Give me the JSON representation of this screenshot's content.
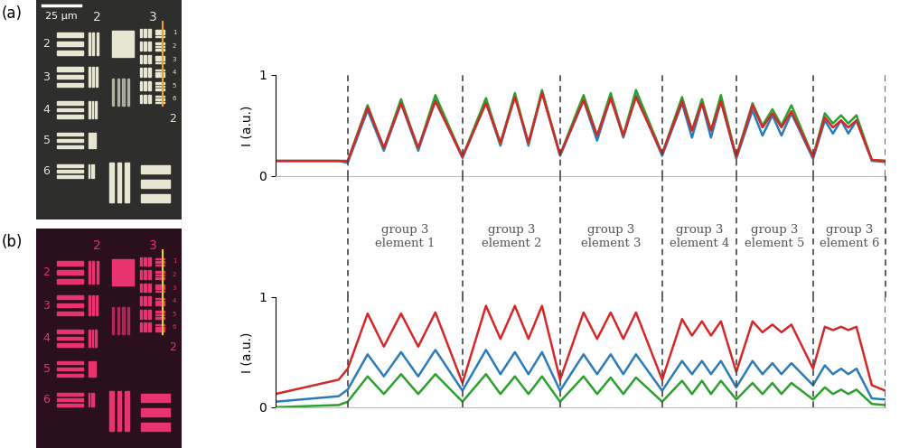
{
  "chart_data": [
    {
      "type": "line",
      "ylabel": "I (a.u.)",
      "xlim": [
        0,
        675
      ],
      "ylim": [
        0,
        1
      ],
      "yticks": [
        0,
        1
      ],
      "tick_labels": "y",
      "line_style": "solid",
      "x": [
        0,
        70,
        80,
        102,
        120,
        139,
        158,
        177,
        207,
        233,
        249,
        265,
        280,
        295,
        315,
        341,
        356,
        371,
        385,
        399,
        428,
        450,
        461,
        472,
        482,
        493,
        510,
        528,
        539,
        550,
        560,
        571,
        595,
        608,
        617,
        626,
        634,
        643,
        660,
        675
      ],
      "vlines": [
        80,
        207,
        315,
        428,
        510,
        595,
        675
      ],
      "annotations": [
        "group 3\nelement 1",
        "group 3\nelement 2",
        "group 3\nelement 3",
        "group 3\nelement 4",
        "group 3\nelement 5",
        "group 3\nelement 6"
      ],
      "series": [
        {
          "color": "#2b7bba",
          "values": [
            0.15,
            0.15,
            0.13,
            0.65,
            0.25,
            0.72,
            0.25,
            0.75,
            0.18,
            0.73,
            0.3,
            0.8,
            0.3,
            0.83,
            0.2,
            0.75,
            0.35,
            0.78,
            0.38,
            0.8,
            0.2,
            0.72,
            0.38,
            0.72,
            0.38,
            0.74,
            0.17,
            0.65,
            0.4,
            0.6,
            0.4,
            0.62,
            0.17,
            0.55,
            0.42,
            0.55,
            0.42,
            0.55,
            0.15,
            0.14
          ]
        },
        {
          "color": "#2ca02c",
          "values": [
            0.15,
            0.15,
            0.15,
            0.7,
            0.27,
            0.76,
            0.27,
            0.8,
            0.19,
            0.77,
            0.32,
            0.82,
            0.32,
            0.85,
            0.21,
            0.8,
            0.4,
            0.82,
            0.4,
            0.85,
            0.22,
            0.78,
            0.45,
            0.76,
            0.45,
            0.8,
            0.19,
            0.72,
            0.5,
            0.66,
            0.5,
            0.7,
            0.19,
            0.62,
            0.52,
            0.6,
            0.52,
            0.6,
            0.16,
            0.15
          ]
        },
        {
          "color": "#d62728",
          "values": [
            0.15,
            0.15,
            0.15,
            0.68,
            0.28,
            0.72,
            0.28,
            0.74,
            0.19,
            0.72,
            0.33,
            0.78,
            0.33,
            0.82,
            0.21,
            0.75,
            0.4,
            0.77,
            0.4,
            0.78,
            0.22,
            0.74,
            0.45,
            0.72,
            0.45,
            0.74,
            0.19,
            0.7,
            0.48,
            0.62,
            0.48,
            0.64,
            0.19,
            0.58,
            0.48,
            0.55,
            0.48,
            0.55,
            0.16,
            0.15
          ]
        }
      ]
    },
    {
      "type": "line",
      "ylabel": "I (a.u.)",
      "xlim": [
        0,
        675
      ],
      "ylim": [
        0,
        1
      ],
      "yticks": [
        0,
        1
      ],
      "tick_labels": "y",
      "line_style": "solid",
      "x": [
        0,
        70,
        80,
        102,
        120,
        139,
        158,
        177,
        207,
        233,
        249,
        265,
        280,
        295,
        315,
        341,
        356,
        371,
        385,
        399,
        428,
        450,
        461,
        472,
        482,
        493,
        510,
        528,
        539,
        550,
        560,
        571,
        595,
        608,
        617,
        626,
        634,
        643,
        660,
        675
      ],
      "vlines": [
        80,
        207,
        315,
        428,
        510,
        595,
        675
      ],
      "series": [
        {
          "color": "#2b7bba",
          "values": [
            0.05,
            0.1,
            0.16,
            0.48,
            0.28,
            0.5,
            0.28,
            0.52,
            0.15,
            0.52,
            0.3,
            0.5,
            0.3,
            0.5,
            0.15,
            0.48,
            0.3,
            0.48,
            0.3,
            0.48,
            0.15,
            0.42,
            0.3,
            0.42,
            0.3,
            0.42,
            0.18,
            0.42,
            0.3,
            0.4,
            0.3,
            0.4,
            0.2,
            0.38,
            0.3,
            0.35,
            0.3,
            0.35,
            0.08,
            0.07
          ]
        },
        {
          "color": "#2ca02c",
          "values": [
            0.0,
            0.02,
            0.05,
            0.28,
            0.12,
            0.3,
            0.12,
            0.3,
            0.05,
            0.3,
            0.12,
            0.28,
            0.12,
            0.28,
            0.05,
            0.28,
            0.12,
            0.27,
            0.12,
            0.27,
            0.05,
            0.24,
            0.12,
            0.24,
            0.12,
            0.24,
            0.07,
            0.22,
            0.12,
            0.22,
            0.12,
            0.22,
            0.07,
            0.18,
            0.12,
            0.16,
            0.12,
            0.16,
            0.03,
            0.02
          ]
        },
        {
          "color": "#d62728",
          "values": [
            0.12,
            0.25,
            0.35,
            0.85,
            0.55,
            0.85,
            0.55,
            0.86,
            0.22,
            0.92,
            0.62,
            0.92,
            0.62,
            0.92,
            0.25,
            0.86,
            0.62,
            0.86,
            0.62,
            0.86,
            0.25,
            0.8,
            0.65,
            0.78,
            0.65,
            0.78,
            0.32,
            0.78,
            0.68,
            0.75,
            0.68,
            0.75,
            0.35,
            0.73,
            0.7,
            0.73,
            0.7,
            0.73,
            0.2,
            0.15
          ]
        }
      ]
    }
  ],
  "images": [
    {
      "label": "(a)",
      "scale_bar": "25 µm",
      "color": "#e6e6d2",
      "groups": [
        "2",
        "3"
      ],
      "left_elements": [
        "2",
        "3",
        "4",
        "5",
        "6"
      ],
      "right_elements": [
        "1",
        "2",
        "3",
        "4",
        "5",
        "6"
      ],
      "corner": "2"
    },
    {
      "label": "(b)",
      "color": "#e8336e",
      "groups": [
        "2",
        "3"
      ],
      "left_elements": [
        "2",
        "3",
        "4",
        "5",
        "6"
      ],
      "right_elements": [
        "1",
        "2",
        "3",
        "4",
        "5",
        "6"
      ],
      "corner": "2"
    }
  ]
}
